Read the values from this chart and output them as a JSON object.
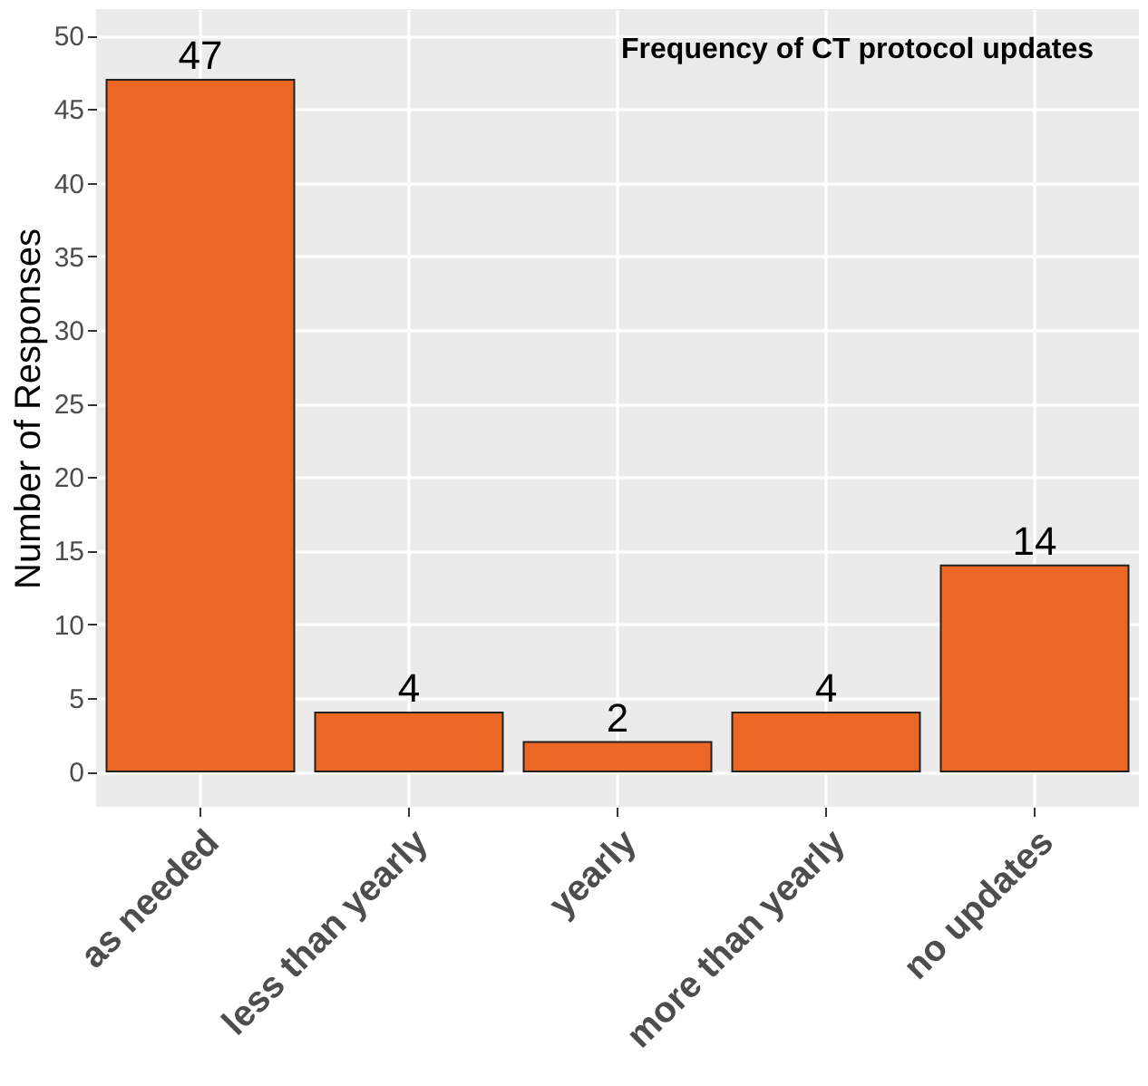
{
  "chart_data": {
    "type": "bar",
    "title": "Frequency of CT protocol updates",
    "ylabel": "Number of Responses",
    "categories": [
      "as needed",
      "less than yearly",
      "yearly",
      "more than yearly",
      "no updates"
    ],
    "values": [
      47,
      4,
      2,
      4,
      14
    ],
    "color": "#ec6723",
    "ylim": [
      -2.4,
      51.8
    ],
    "yticks": [
      0,
      5,
      10,
      15,
      20,
      25,
      30,
      35,
      40,
      45,
      50
    ],
    "grid": true,
    "data_labels": true
  }
}
